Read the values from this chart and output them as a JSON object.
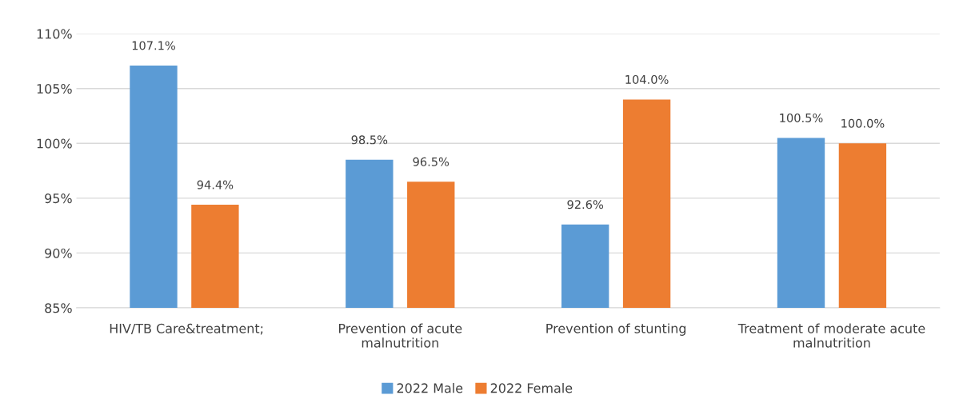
{
  "chart_data": {
    "type": "bar",
    "annotations": [
      ";"
    ],
    "categories": [
      "HIV/TB Care&treatment",
      "Prevention of acute\nmalnutrition",
      "Prevention of stunting",
      "Treatment of moderate acute\nmalnutrition"
    ],
    "series": [
      {
        "name": "2022 Male",
        "color": "#5b9bd5",
        "values": [
          107.1,
          98.5,
          92.6,
          100.5
        ],
        "value_labels": [
          "107.1%",
          "98.5%",
          "92.6%",
          "100.5%"
        ]
      },
      {
        "name": "2022 Female",
        "color": "#ed7d31",
        "values": [
          94.4,
          96.5,
          104.0,
          100.0
        ],
        "value_labels": [
          "94.4%",
          "96.5%",
          "104.0%",
          "100.0%"
        ]
      }
    ],
    "ylim": [
      85,
      110
    ],
    "yticks": [
      {
        "value": 85,
        "label": "85%"
      },
      {
        "value": 90,
        "label": "90%"
      },
      {
        "value": 95,
        "label": "95%"
      },
      {
        "value": 100,
        "label": "100%"
      },
      {
        "value": 105,
        "label": "105%"
      },
      {
        "value": 110,
        "label": "110%"
      }
    ],
    "grid": "y",
    "legend": "bottom"
  }
}
